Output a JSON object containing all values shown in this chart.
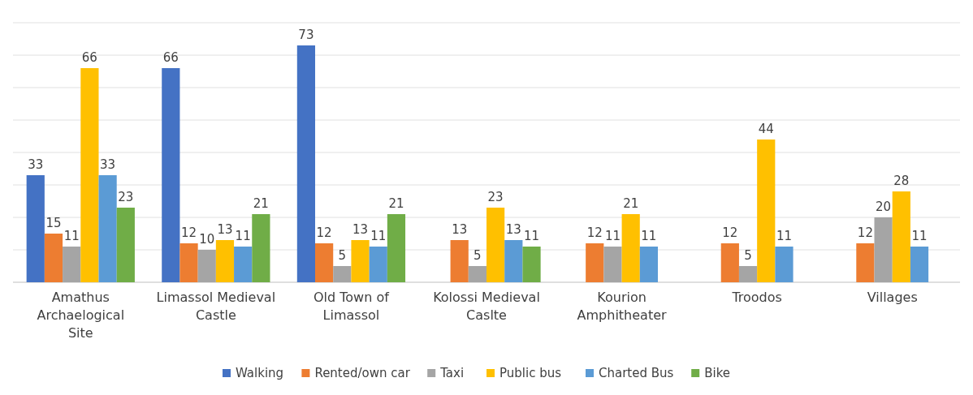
{
  "chart_data": {
    "type": "bar",
    "categories": [
      "Amathus Archaelogical Site",
      "Limassol Medieval Castle",
      "Old Town of Limassol",
      "Kolossi Medieval Caslte",
      "Kourion Amphitheater",
      "Troodos",
      "Villages"
    ],
    "series": [
      {
        "name": "Walking",
        "color": "#4472c4",
        "values": [
          33,
          66,
          73,
          null,
          null,
          null,
          null
        ]
      },
      {
        "name": "Rented/own car",
        "color": "#ed7d31",
        "values": [
          15,
          12,
          12,
          13,
          12,
          12,
          12
        ]
      },
      {
        "name": "Taxi",
        "color": "#a5a5a5",
        "values": [
          11,
          10,
          5,
          5,
          11,
          5,
          20
        ]
      },
      {
        "name": "Public bus",
        "color": "#ffc000",
        "values": [
          66,
          13,
          13,
          23,
          21,
          44,
          28
        ]
      },
      {
        "name": "Charted Bus",
        "color": "#5b9bd5",
        "values": [
          33,
          11,
          11,
          13,
          11,
          11,
          11
        ]
      },
      {
        "name": "Bike",
        "color": "#70ad47",
        "values": [
          23,
          21,
          21,
          11,
          null,
          null,
          null
        ]
      }
    ],
    "ylim": [
      0,
      80
    ],
    "yticks": [
      {
        "value": 0,
        "label": null
      },
      {
        "value": 10,
        "label": null
      },
      {
        "value": 20,
        "label": null
      },
      {
        "value": 30,
        "label": null
      },
      {
        "value": 40,
        "label": null
      },
      {
        "value": 50,
        "label": null
      },
      {
        "value": 60,
        "label": null
      },
      {
        "value": 70,
        "label": null
      },
      {
        "value": 80,
        "label": null
      }
    ],
    "grid": "y",
    "data_labels": true,
    "legend": "bottom",
    "tick_labels": "x"
  }
}
